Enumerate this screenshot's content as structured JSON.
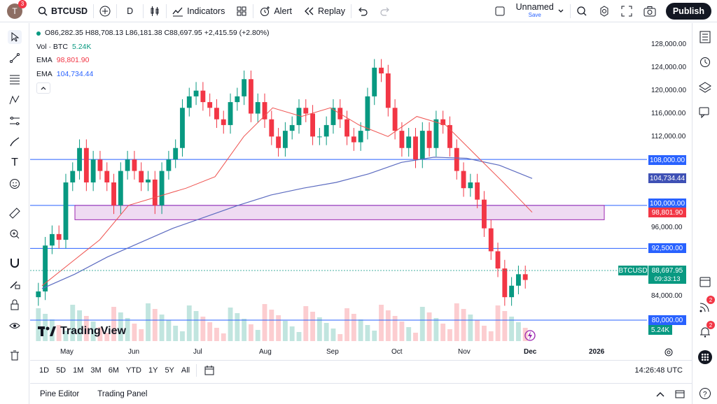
{
  "header": {
    "avatar_letter": "T",
    "avatar_badge": "3",
    "symbol": "BTCUSD",
    "interval": "D",
    "indicators_label": "Indicators",
    "alert_label": "Alert",
    "replay_label": "Replay",
    "layout_name": "Unnamed",
    "layout_save": "Save",
    "publish_label": "Publish"
  },
  "legend": {
    "ohlc": "O86,282.35 H88,708.13 L86,181.38 C88,697.95 +2,415.59 (+2.80%)",
    "vol_label": "Vol · BTC",
    "vol_value": "5.24K",
    "ema1_label": "EMA",
    "ema1_value": "98,801.90",
    "ema2_label": "EMA",
    "ema2_value": "104,734.44"
  },
  "price_axis": {
    "labels": [
      "128,000.00",
      "124,000.00",
      "120,000.00",
      "116,000.00",
      "112,000.00",
      "96,000.00",
      "84,000.00"
    ]
  },
  "price_tags": {
    "level_108": "108,000.00",
    "ema2": "104,734.44",
    "level_100": "100,000.00",
    "ema1": "98,801.90",
    "level_92": "92,500.00",
    "symbol_tag": "BTCUSD",
    "last_price": "88,697.95",
    "countdown": "09:33:13",
    "level_80": "80,000.00",
    "volume": "5.24K"
  },
  "time_axis": {
    "labels": [
      "May",
      "Jun",
      "Jul",
      "Aug",
      "Sep",
      "Oct",
      "Nov",
      "Dec",
      "2026"
    ]
  },
  "range_bar": {
    "ranges": [
      "1D",
      "5D",
      "1M",
      "3M",
      "6M",
      "YTD",
      "1Y",
      "5Y",
      "All"
    ],
    "clock": "14:26:48 UTC"
  },
  "bottom": {
    "pine_editor": "Pine Editor",
    "trading_panel": "Trading Panel"
  },
  "branding": {
    "logo_text": "TradingView"
  },
  "right_badges": {
    "ideas": "2",
    "alerts": "2"
  },
  "colors": {
    "up": "#089981",
    "down": "#f23645",
    "ema_fast": "#f23645",
    "ema_slow": "#2962ff",
    "level": "#2962ff",
    "zone": "#e1bee7"
  },
  "chart_data": {
    "type": "line",
    "title": "",
    "ylim": [
      79000,
      130000
    ],
    "horizontal_levels": [
      108000,
      100000,
      92500,
      80000
    ],
    "zone": [
      97500,
      100000
    ],
    "series": [
      {
        "name": "EMA",
        "values": [
          86000,
          90000,
          94000,
          100000,
          101500,
          103000,
          105000,
          112000,
          117000,
          115500,
          117000,
          114000,
          112000,
          115500,
          114000,
          109000,
          104000,
          98800
        ]
      },
      {
        "name": "EMA",
        "values": [
          85500,
          88000,
          91000,
          93500,
          96000,
          98000,
          100000,
          101800,
          103000,
          104000,
          105500,
          107500,
          108400,
          108200,
          107000,
          104700
        ]
      }
    ]
  }
}
